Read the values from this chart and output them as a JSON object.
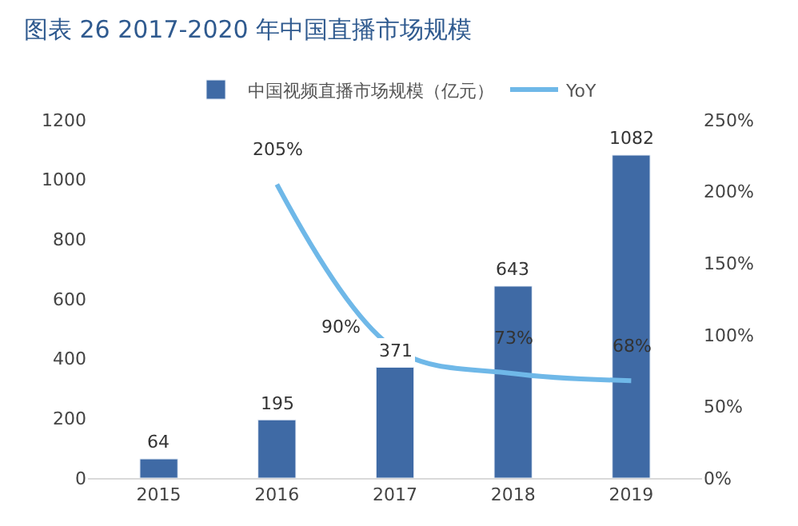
{
  "chart_data": {
    "type": "bar",
    "title": "图表 26 2017-2020 年中国直播市场规模",
    "categories": [
      "2015",
      "2016",
      "2017",
      "2018",
      "2019"
    ],
    "series": [
      {
        "name": "中国视频直播市场规模（亿元）",
        "color": "#3f6aa5",
        "values": [
          64,
          195,
          371,
          643,
          1082
        ],
        "value_labels": [
          "64",
          "195",
          "371",
          "643",
          "1082"
        ]
      },
      {
        "name": "YoY",
        "type": "line",
        "axis": "y2",
        "color": "#6fb8e8",
        "values": [
          null,
          205,
          90,
          73,
          68
        ],
        "value_labels": [
          null,
          "205%",
          "90%",
          "73%",
          "68%"
        ],
        "marker": "none",
        "line_style": "solid"
      }
    ],
    "ylim": [
      0,
      1200
    ],
    "yticks": [
      0,
      200,
      400,
      600,
      800,
      1000,
      1200
    ],
    "y2lim": [
      0,
      250
    ],
    "y2ticks": [
      {
        "value": 0,
        "label": "0%"
      },
      {
        "value": 50,
        "label": "50%"
      },
      {
        "value": 100,
        "label": "100%"
      },
      {
        "value": 150,
        "label": "150%"
      },
      {
        "value": 200,
        "label": "200%"
      },
      {
        "value": 250,
        "label": "250%"
      }
    ],
    "legend": "top"
  }
}
